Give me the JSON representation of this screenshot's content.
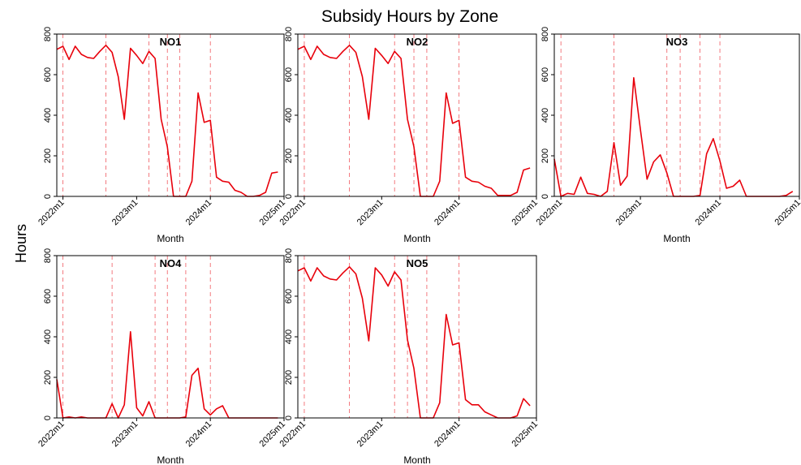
{
  "chart_data": {
    "type": "line",
    "title": "Subsidy Hours by Zone",
    "ylabel": "Hours",
    "xlabel": "Month",
    "ylim": [
      0,
      800
    ],
    "yticks": [
      0,
      200,
      400,
      600,
      800
    ],
    "xlim": [
      "2022m1",
      "2025m1"
    ],
    "xticks": [
      "2022m1",
      "2023m1",
      "2024m1",
      "2025m1"
    ],
    "grid": false,
    "colors": {
      "series": "#e8000b",
      "reference_lines": "#e8000b"
    },
    "x": [
      "2021m12",
      "2022m1",
      "2022m2",
      "2022m3",
      "2022m4",
      "2022m5",
      "2022m6",
      "2022m7",
      "2022m8",
      "2022m9",
      "2022m10",
      "2022m11",
      "2022m12",
      "2023m1",
      "2023m2",
      "2023m3",
      "2023m4",
      "2023m5",
      "2023m6",
      "2023m7",
      "2023m8",
      "2023m9",
      "2023m10",
      "2023m11",
      "2023m12",
      "2024m1",
      "2024m2",
      "2024m3",
      "2024m4",
      "2024m5",
      "2024m6",
      "2024m7",
      "2024m8",
      "2024m9",
      "2024m10",
      "2024m11",
      "2024m12"
    ],
    "panels": [
      {
        "label": "NO1",
        "reference_lines": [
          "2022m1",
          "2022m8",
          "2023m3",
          "2023m6",
          "2023m8",
          "2024m1"
        ],
        "values": [
          725,
          740,
          675,
          740,
          700,
          685,
          680,
          715,
          745,
          710,
          590,
          380,
          730,
          695,
          655,
          715,
          680,
          380,
          245,
          0,
          0,
          0,
          75,
          510,
          365,
          375,
          95,
          75,
          70,
          30,
          20,
          0,
          0,
          5,
          20,
          115,
          120
        ]
      },
      {
        "label": "NO2",
        "reference_lines": [
          "2022m1",
          "2022m8",
          "2023m3",
          "2023m6",
          "2023m8",
          "2024m1"
        ],
        "values": [
          725,
          740,
          675,
          740,
          700,
          685,
          680,
          715,
          745,
          710,
          590,
          380,
          730,
          695,
          655,
          715,
          680,
          380,
          245,
          0,
          0,
          0,
          75,
          510,
          360,
          375,
          95,
          75,
          70,
          50,
          40,
          5,
          5,
          5,
          20,
          130,
          140
        ]
      },
      {
        "label": "NO3",
        "reference_lines": [
          "2022m1",
          "2022m9",
          "2023m5",
          "2023m7",
          "2023m10",
          "2024m1"
        ],
        "values": [
          185,
          0,
          15,
          10,
          95,
          15,
          10,
          0,
          25,
          265,
          55,
          100,
          585,
          330,
          85,
          170,
          205,
          115,
          0,
          0,
          0,
          0,
          5,
          210,
          285,
          175,
          40,
          50,
          80,
          0,
          0,
          0,
          0,
          0,
          0,
          5,
          25
        ]
      },
      {
        "label": "NO4",
        "reference_lines": [
          "2022m1",
          "2022m9",
          "2023m4",
          "2023m6",
          "2023m9",
          "2024m1"
        ],
        "values": [
          190,
          0,
          5,
          0,
          5,
          0,
          0,
          0,
          0,
          70,
          0,
          65,
          425,
          50,
          10,
          80,
          0,
          0,
          0,
          0,
          0,
          5,
          210,
          245,
          45,
          15,
          45,
          60,
          0,
          0,
          0,
          0,
          0,
          0,
          0,
          0,
          0
        ]
      },
      {
        "label": "NO5",
        "reference_lines": [
          "2022m1",
          "2022m8",
          "2023m3",
          "2023m5",
          "2023m8",
          "2024m1"
        ],
        "values": [
          725,
          740,
          675,
          740,
          700,
          685,
          680,
          715,
          745,
          710,
          590,
          380,
          740,
          705,
          650,
          720,
          680,
          385,
          245,
          0,
          0,
          0,
          75,
          510,
          360,
          370,
          90,
          65,
          65,
          30,
          15,
          0,
          0,
          0,
          10,
          95,
          60
        ]
      }
    ]
  }
}
